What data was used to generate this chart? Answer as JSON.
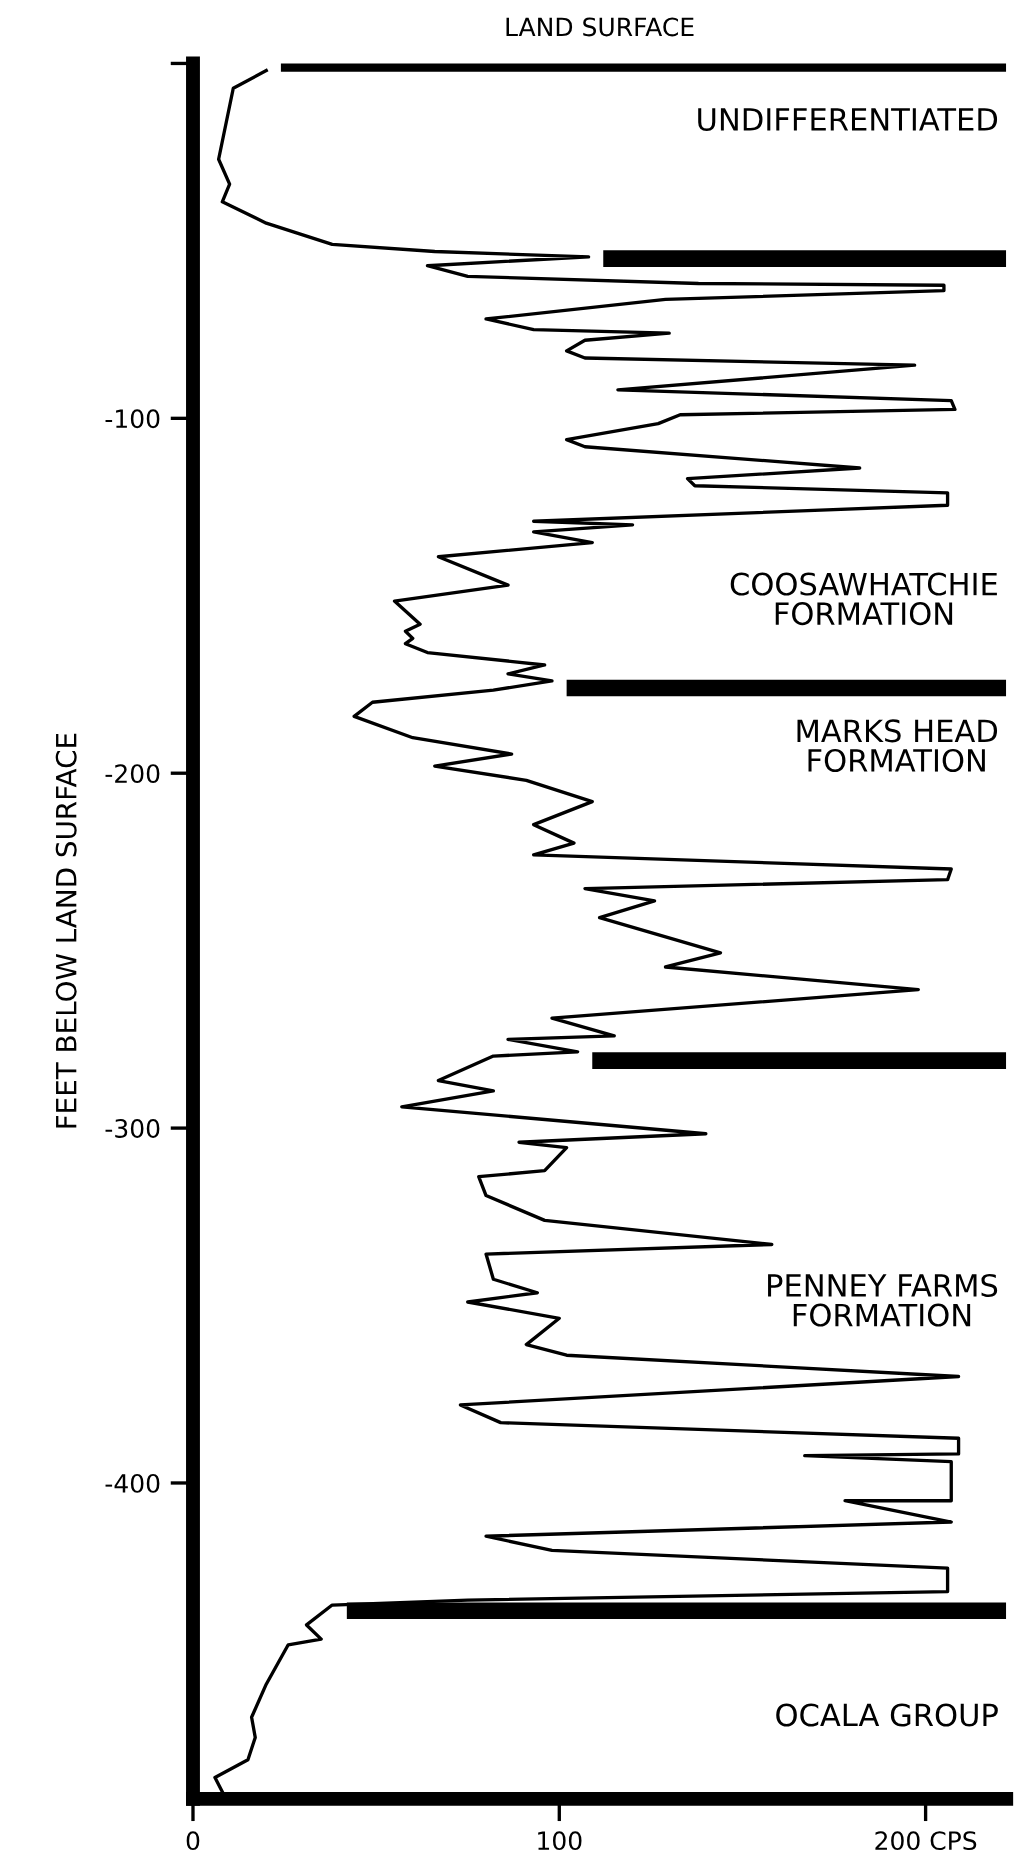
{
  "chart_data": {
    "type": "line",
    "ylabel": "FEET BELOW LAND SURFACE",
    "x": [
      20,
      11,
      9,
      7,
      10,
      8,
      20,
      38,
      66,
      108,
      64,
      75,
      138,
      205,
      205,
      129,
      80,
      93,
      130,
      107,
      102,
      107,
      197,
      116,
      207,
      208,
      133,
      127,
      102,
      107,
      182,
      135,
      137,
      206,
      206,
      93,
      120,
      93,
      109,
      67,
      86,
      55,
      62,
      58,
      60,
      58,
      64,
      96,
      86,
      98,
      82,
      49,
      44,
      60,
      87,
      66,
      91,
      109,
      93,
      104,
      93,
      207,
      206,
      107,
      126,
      111,
      144,
      129,
      198,
      98,
      115,
      86,
      105,
      82,
      67,
      82,
      57,
      140,
      89,
      102,
      96,
      78,
      80,
      96,
      158,
      80,
      82,
      94,
      75,
      100,
      91,
      102,
      209,
      73,
      84,
      209,
      209,
      167,
      207,
      207,
      178,
      207,
      80,
      98,
      206,
      206,
      75,
      38,
      31,
      35,
      26,
      20,
      16,
      17,
      15,
      6,
      8
    ],
    "series": [
      {
        "color": "#000000",
        "values": [
          -2,
          -7,
          -17,
          -27,
          -34,
          -39,
          -45,
          -51,
          -53,
          -54.5,
          -57,
          -60,
          -62,
          -62.5,
          -64,
          -66.5,
          -72,
          -75,
          -76,
          -78,
          -81,
          -83,
          -85,
          -92,
          -95,
          -97.5,
          -99,
          -101.5,
          -106,
          -108,
          -114,
          -117,
          -119,
          -121,
          -124.5,
          -129,
          -130,
          -132,
          -135,
          -139,
          -147,
          -151.5,
          -158,
          -160,
          -162,
          -163.5,
          -166,
          -169.5,
          -172,
          -174,
          -176.6,
          -180,
          -184,
          -190,
          -194.6,
          -198,
          -202,
          -208,
          -214.5,
          -219.7,
          -223,
          -227,
          -230,
          -232.5,
          -236,
          -240.7,
          -250.6,
          -254.6,
          -261,
          -269,
          -274,
          -275,
          -278.5,
          -279.7,
          -286.6,
          -289.5,
          -294,
          -301.6,
          -304,
          -305.5,
          -312,
          -313.7,
          -319,
          -326,
          -332.8,
          -335.5,
          -342.6,
          -346.4,
          -349,
          -353.6,
          -361,
          -364,
          -370,
          -378,
          -383,
          -387.4,
          -391.8,
          -392.3,
          -394,
          -405,
          -405,
          -411,
          -415,
          -419,
          -424,
          -430.6,
          -433,
          -434.4,
          -440,
          -444,
          -445.6,
          -456.7,
          -466,
          -471.7,
          -478,
          -483,
          -487
        ]
      }
    ],
    "xlim": [
      0,
      222
    ],
    "ylim": [
      -489,
      0
    ],
    "xticks": [
      0,
      100,
      {
        "value": 200,
        "label": "200 CPS"
      }
    ],
    "yticks": [
      {
        "value": 0,
        "label": null
      },
      -100,
      -200,
      -300,
      -400
    ],
    "grid": false,
    "legend": false,
    "ref_lines": [
      {
        "axis": "y",
        "value": 0,
        "label": "LAND SURFACE",
        "color": "#000000"
      },
      {
        "axis": "y",
        "value": -55,
        "color": "#000000"
      },
      {
        "axis": "y",
        "value": -176,
        "color": "#000000"
      },
      {
        "axis": "y",
        "value": -281,
        "color": "#000000"
      },
      {
        "axis": "y",
        "value": -436,
        "color": "#000000"
      }
    ],
    "annotations": [
      "UNDIFFERENTIATED",
      "COOSAWHATCHIE\nFORMATION",
      "MARKS HEAD\nFORMATION",
      "PENNEY FARMS\nFORMATION",
      "OCALA GROUP"
    ]
  }
}
